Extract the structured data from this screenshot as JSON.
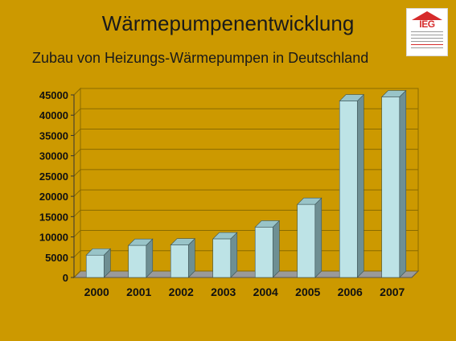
{
  "header": {
    "title": "Wärmepumpenentwicklung",
    "subtitle": "Zubau von Heizungs-Wärmepumpen in Deutschland"
  },
  "logo": {
    "text": "IEG"
  },
  "colors": {
    "background": "#cc9900",
    "bar_front": "#bde3e6",
    "bar_side": "#6e8f93",
    "bar_top": "#99c4c8",
    "grid": "#8a6a00"
  },
  "chart_data": {
    "type": "bar",
    "categories": [
      "2000",
      "2001",
      "2002",
      "2003",
      "2004",
      "2005",
      "2006",
      "2007"
    ],
    "values": [
      5500,
      7900,
      8000,
      9500,
      12400,
      18000,
      43500,
      44500
    ],
    "yticks": [
      "0",
      "5000",
      "10000",
      "15000",
      "20000",
      "25000",
      "30000",
      "35000",
      "40000",
      "45000"
    ],
    "ylim": [
      0,
      45000
    ],
    "grid": true,
    "style": "3d"
  }
}
